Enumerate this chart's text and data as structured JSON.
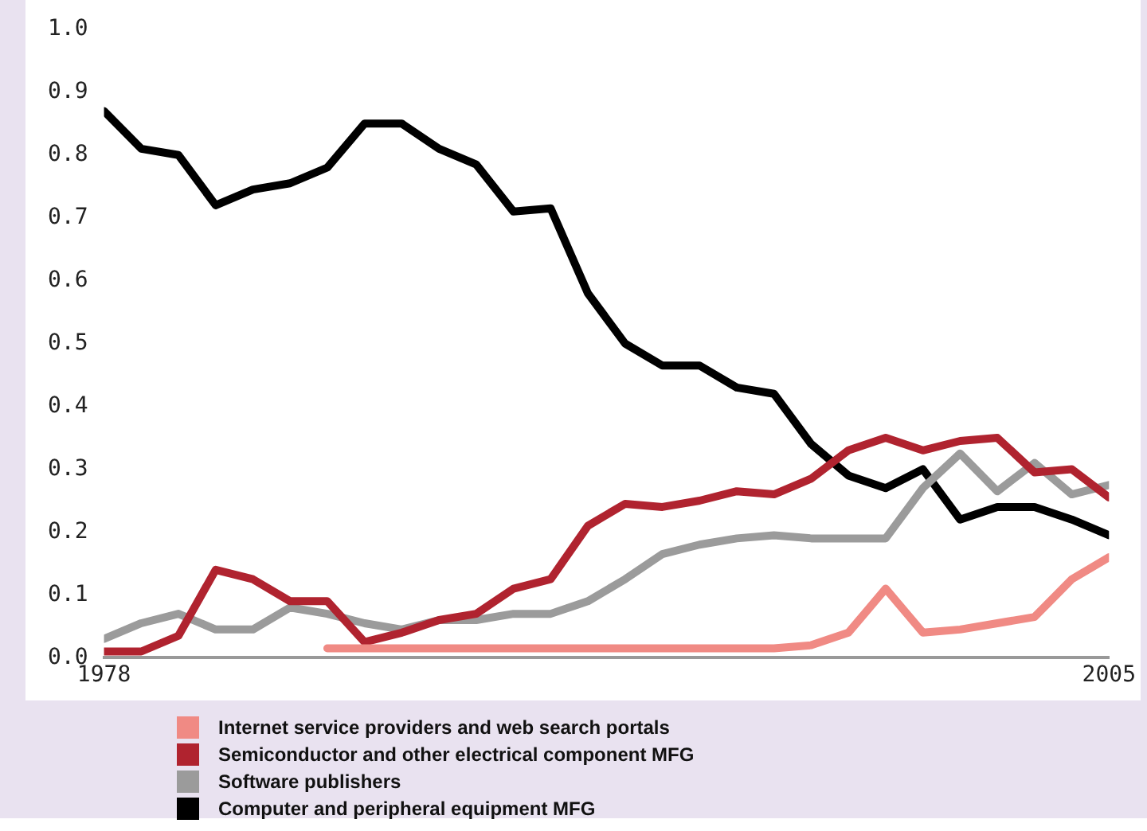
{
  "chart_data": {
    "type": "line",
    "x": [
      1978,
      1979,
      1980,
      1981,
      1982,
      1983,
      1984,
      1985,
      1986,
      1987,
      1988,
      1989,
      1990,
      1991,
      1992,
      1993,
      1994,
      1995,
      1996,
      1997,
      1998,
      1999,
      2000,
      2001,
      2002,
      2003,
      2004,
      2005
    ],
    "series": [
      {
        "name": "Internet service providers and web search portals",
        "color": "#f08a84",
        "values": [
          null,
          null,
          null,
          null,
          null,
          null,
          0.015,
          0.015,
          0.015,
          0.015,
          0.015,
          0.015,
          0.015,
          0.015,
          0.015,
          0.015,
          0.015,
          0.015,
          0.015,
          0.02,
          0.04,
          0.11,
          0.04,
          0.045,
          0.055,
          0.065,
          0.125,
          0.16
        ]
      },
      {
        "name": "Semiconductor and other electrical component MFG",
        "color": "#b0232f",
        "values": [
          0.01,
          0.01,
          0.035,
          0.14,
          0.125,
          0.09,
          0.09,
          0.025,
          0.04,
          0.06,
          0.07,
          0.11,
          0.125,
          0.21,
          0.245,
          0.24,
          0.25,
          0.265,
          0.26,
          0.285,
          0.33,
          0.35,
          0.33,
          0.345,
          0.35,
          0.295,
          0.3,
          0.255
        ]
      },
      {
        "name": "Software publishers",
        "color": "#9b9b9b",
        "values": [
          0.03,
          0.055,
          0.07,
          0.045,
          0.045,
          0.08,
          0.07,
          0.055,
          0.045,
          0.06,
          0.06,
          0.07,
          0.07,
          0.09,
          0.125,
          0.165,
          0.18,
          0.19,
          0.195,
          0.19,
          0.19,
          0.19,
          0.27,
          0.325,
          0.265,
          0.31,
          0.26,
          0.275
        ]
      },
      {
        "name": "Computer and peripheral equipment MFG",
        "color": "#000000",
        "values": [
          0.87,
          0.81,
          0.8,
          0.72,
          0.745,
          0.755,
          0.78,
          0.85,
          0.85,
          0.81,
          0.785,
          0.71,
          0.715,
          0.58,
          0.5,
          0.465,
          0.465,
          0.43,
          0.42,
          0.34,
          0.29,
          0.27,
          0.3,
          0.22,
          0.24,
          0.24,
          0.22,
          0.195
        ]
      }
    ],
    "xlim": [
      1978,
      2005
    ],
    "xticks": [
      1978,
      2005
    ],
    "ylim": [
      0,
      1
    ],
    "yticks": [
      {
        "value": 0,
        "label": "0.0"
      },
      {
        "value": 0.1,
        "label": "0.1"
      },
      {
        "value": 0.2,
        "label": "0.2"
      },
      {
        "value": 0.3,
        "label": "0.3"
      },
      {
        "value": 0.4,
        "label": "0.4"
      },
      {
        "value": 0.5,
        "label": "0.5"
      },
      {
        "value": 0.6,
        "label": "0.6"
      },
      {
        "value": 0.7,
        "label": "0.7"
      },
      {
        "value": 0.8,
        "label": "0.8"
      },
      {
        "value": 0.9,
        "label": "0.9"
      },
      {
        "value": 1,
        "label": "1.0"
      }
    ],
    "grid": false,
    "legend": "bottom left",
    "marker": "none",
    "line_style": "solid"
  }
}
